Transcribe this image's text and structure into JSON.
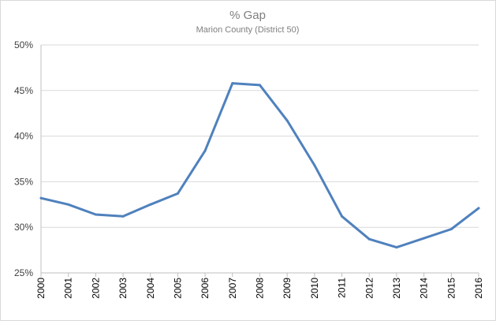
{
  "chart_data": {
    "type": "line",
    "title": "% Gap",
    "subtitle": "Marion County (District 50)",
    "x": [
      "2000",
      "2001",
      "2002",
      "2003",
      "2004",
      "2005",
      "2006",
      "2007",
      "2008",
      "2009",
      "2010",
      "2011",
      "2012",
      "2013",
      "2014",
      "2015",
      "2016"
    ],
    "series": [
      {
        "values": [
          33.2,
          32.5,
          31.4,
          31.2,
          32.5,
          33.7,
          38.4,
          45.8,
          45.6,
          41.7,
          36.8,
          31.2,
          28.7,
          27.8,
          28.8,
          29.8,
          32.1
        ],
        "color": "#4f81bd"
      }
    ],
    "y_ticks": [
      "25%",
      "30%",
      "35%",
      "40%",
      "45%",
      "50%"
    ],
    "ylim": [
      25,
      50
    ],
    "grid": true,
    "legend": "none"
  }
}
